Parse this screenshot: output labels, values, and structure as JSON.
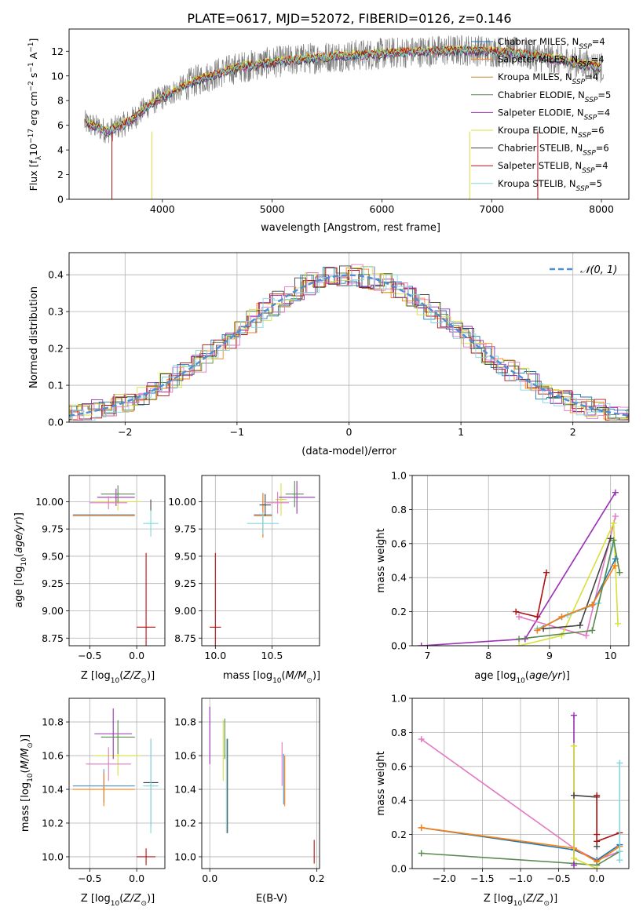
{
  "figure_title": "PLATE=0617, MJD=52072, FIBERID=0126, z=0.146",
  "chart_data": [
    {
      "id": "spectrum",
      "type": "line",
      "xlabel": "wavelength [Angstrom, rest frame]",
      "ylabel": "Flux [f",
      "ylabel_parts": [
        "Flux [f",
        "λ",
        "10",
        "−17",
        " erg cm",
        "−2",
        " s",
        "−1",
        " A",
        "−1",
        "]"
      ],
      "xlim": [
        3150,
        8250
      ],
      "ylim": [
        0,
        13.8
      ],
      "xticks": [
        4000,
        5000,
        6000,
        7000,
        8000
      ],
      "yticks": [
        0,
        2,
        4,
        6,
        8,
        10,
        12
      ],
      "grid": false,
      "legend_position": "right",
      "data_envelope": {
        "x": [
          3300,
          3500,
          3700,
          3900,
          4100,
          4300,
          4500,
          4700,
          5000,
          5300,
          5600,
          6000,
          6400,
          6800,
          7200,
          7600,
          8000
        ],
        "y": [
          6.2,
          5.5,
          6.3,
          7.8,
          8.7,
          9.6,
          10.2,
          10.7,
          11.1,
          11.4,
          11.6,
          11.8,
          12.0,
          12.1,
          11.9,
          11.3,
          10.7
        ]
      },
      "series": [
        {
          "name": "Chabrier MILES, N",
          "nssp": "4",
          "color": "#1f77b4",
          "offset": 0.0
        },
        {
          "name": "Salpeter MILES, N",
          "nssp": "4",
          "color": "#ff7f0e",
          "offset": 0.05
        },
        {
          "name": "Kroupa MILES, N",
          "nssp": "4",
          "color": "#bf8a22",
          "offset": -0.05
        },
        {
          "name": "Chabrier ELODIE, N",
          "nssp": "5",
          "color": "#5a8a50",
          "offset": 0.1
        },
        {
          "name": "Salpeter ELODIE, N",
          "nssp": "4",
          "color": "#9b30b5",
          "offset": -0.1
        },
        {
          "name": "Kroupa ELODIE, N",
          "nssp": "6",
          "color": "#d8e03a",
          "offset": 0.15
        },
        {
          "name": "Chabrier STELIB, N",
          "nssp": "6",
          "color": "#444444",
          "offset": -0.15
        },
        {
          "name": "Salpeter STELIB, N",
          "nssp": "4",
          "color": "#b01010",
          "offset": 0.08
        },
        {
          "name": "Kroupa STELIB, N",
          "nssp": "5",
          "color": "#7fd6dc",
          "offset": -0.02
        }
      ],
      "ssp_subscript": "SSP"
    },
    {
      "id": "residuals",
      "type": "line",
      "xlabel": "(data-model)/error",
      "ylabel": "Normed distribution",
      "xlim": [
        -2.5,
        2.5
      ],
      "ylim": [
        0,
        0.46
      ],
      "xticks": [
        -2,
        -1,
        0,
        1,
        2
      ],
      "yticks": [
        0.0,
        0.1,
        0.2,
        0.3,
        0.4
      ],
      "grid": true,
      "legend_position": "top-right",
      "reference_curve": {
        "name": "𝒩(0, 1)",
        "color": "#4c8fd6",
        "mean": 0.0,
        "sigma": 1.0
      },
      "histogram_bin_width": 0.1,
      "histogram_colors": [
        "#1f77b4",
        "#ff7f0e",
        "#5a8a50",
        "#b01010",
        "#9b30b5",
        "#d8e03a",
        "#444444",
        "#e377c2",
        "#7fd6dc"
      ]
    },
    {
      "id": "age_vs_Z",
      "type": "scatter",
      "xlabel": "Z [log",
      "ylabel": "age  [log",
      "xlim": [
        -0.72,
        0.3
      ],
      "ylim": [
        8.68,
        10.24
      ],
      "xticks": [
        -0.5,
        0.0
      ],
      "yticks": [
        8.75,
        9.0,
        9.25,
        9.5,
        9.75,
        10.0
      ],
      "grid": true,
      "points": [
        {
          "x": -0.35,
          "y": 9.88,
          "xerr": 0.33,
          "yerr": 0.0,
          "color": "#4c8fd6"
        },
        {
          "x": -0.35,
          "y": 9.87,
          "xerr": 0.33,
          "yerr": 0.0,
          "color": "#ff7f0e"
        },
        {
          "x": -0.2,
          "y": 10.0,
          "xerr": 0.25,
          "yerr": 0.08,
          "color": "#d8e03a"
        },
        {
          "x": -0.22,
          "y": 10.04,
          "xerr": 0.2,
          "yerr": 0.08,
          "color": "#9b30b5"
        },
        {
          "x": -0.2,
          "y": 10.07,
          "xerr": 0.18,
          "yerr": 0.08,
          "color": "#5a8a50"
        },
        {
          "x": -0.3,
          "y": 9.99,
          "xerr": 0.2,
          "yerr": 0.06,
          "color": "#e377c2"
        },
        {
          "x": 0.15,
          "y": 9.97,
          "xerr": 0.0,
          "yerr": 0.05,
          "color": "#444444"
        },
        {
          "x": 0.15,
          "y": 9.8,
          "xerr": 0.08,
          "yerr": 0.12,
          "color": "#7fd6dc"
        },
        {
          "x": 0.1,
          "y": 8.85,
          "xerr": 0.1,
          "yerr": 0.68,
          "color": "#b01010"
        }
      ]
    },
    {
      "id": "age_vs_mass",
      "type": "scatter",
      "xlabel": "mass [log",
      "ylabel": "",
      "xlim": [
        9.88,
        10.92
      ],
      "ylim": [
        8.68,
        10.24
      ],
      "xticks": [
        10.0,
        10.5
      ],
      "yticks": [
        8.75,
        9.0,
        9.25,
        9.5,
        9.75,
        10.0
      ],
      "grid": true,
      "points": [
        {
          "x": 10.42,
          "y": 9.88,
          "xerr": 0.08,
          "yerr": 0.2,
          "color": "#4c8fd6"
        },
        {
          "x": 10.42,
          "y": 9.87,
          "xerr": 0.08,
          "yerr": 0.2,
          "color": "#ff7f0e"
        },
        {
          "x": 10.58,
          "y": 10.02,
          "xerr": 0.05,
          "yerr": 0.15,
          "color": "#d8e03a"
        },
        {
          "x": 10.72,
          "y": 10.04,
          "xerr": 0.16,
          "yerr": 0.15,
          "color": "#9b30b5"
        },
        {
          "x": 10.7,
          "y": 10.07,
          "xerr": 0.08,
          "yerr": 0.12,
          "color": "#5a8a50"
        },
        {
          "x": 10.55,
          "y": 9.99,
          "xerr": 0.1,
          "yerr": 0.1,
          "color": "#e377c2"
        },
        {
          "x": 10.44,
          "y": 9.97,
          "xerr": 0.05,
          "yerr": 0.1,
          "color": "#444444"
        },
        {
          "x": 10.42,
          "y": 9.8,
          "xerr": 0.14,
          "yerr": 0.1,
          "color": "#7fd6dc"
        },
        {
          "x": 10.0,
          "y": 8.85,
          "xerr": 0.05,
          "yerr": 0.68,
          "color": "#b01010"
        }
      ]
    },
    {
      "id": "massweight_vs_age",
      "type": "line",
      "xlabel": "age  [log",
      "ylabel": "mass weight",
      "xlim": [
        6.75,
        10.3
      ],
      "ylim": [
        0,
        1.0
      ],
      "xticks": [
        7,
        8,
        9,
        10
      ],
      "yticks": [
        0.0,
        0.2,
        0.4,
        0.6,
        0.8,
        1.0
      ],
      "grid": true,
      "series": [
        {
          "color": "#9b30b5",
          "x": [
            6.9,
            8.6,
            10.08
          ],
          "y": [
            0.0,
            0.04,
            0.9
          ]
        },
        {
          "color": "#e377c2",
          "x": [
            8.5,
            9.6,
            10.08
          ],
          "y": [
            0.17,
            0.06,
            0.76
          ]
        },
        {
          "color": "#d8e03a",
          "x": [
            8.5,
            9.2,
            10.05,
            10.12
          ],
          "y": [
            0.0,
            0.06,
            0.72,
            0.13
          ]
        },
        {
          "color": "#7fd6dc",
          "x": [
            8.8,
            9.3,
            9.8,
            10.05
          ],
          "y": [
            0.1,
            0.18,
            0.25,
            0.6
          ]
        },
        {
          "color": "#444444",
          "x": [
            8.9,
            9.5,
            10.0
          ],
          "y": [
            0.1,
            0.12,
            0.63
          ]
        },
        {
          "color": "#1f77b4",
          "x": [
            8.8,
            9.2,
            9.7,
            10.08
          ],
          "y": [
            0.09,
            0.17,
            0.24,
            0.51
          ]
        },
        {
          "color": "#ff7f0e",
          "x": [
            8.8,
            9.2,
            9.7,
            10.07
          ],
          "y": [
            0.09,
            0.17,
            0.24,
            0.47
          ]
        },
        {
          "color": "#5a8a50",
          "x": [
            8.5,
            9.7,
            10.05,
            10.15
          ],
          "y": [
            0.04,
            0.09,
            0.62,
            0.43
          ]
        },
        {
          "color": "#b01010",
          "x": [
            8.45,
            8.8,
            8.95
          ],
          "y": [
            0.2,
            0.17,
            0.43
          ]
        }
      ]
    },
    {
      "id": "mass_vs_Z",
      "type": "scatter",
      "xlabel": "Z [log",
      "ylabel": "mass [log",
      "xlim": [
        -0.72,
        0.3
      ],
      "ylim": [
        9.93,
        10.94
      ],
      "xticks": [
        -0.5,
        0.0
      ],
      "yticks": [
        10.0,
        10.2,
        10.4,
        10.6,
        10.8
      ],
      "grid": true,
      "points": [
        {
          "x": -0.35,
          "y": 10.42,
          "xerr": 0.33,
          "yerr": 0.1,
          "color": "#4c8fd6"
        },
        {
          "x": -0.35,
          "y": 10.4,
          "xerr": 0.33,
          "yerr": 0.1,
          "color": "#ff7f0e"
        },
        {
          "x": -0.2,
          "y": 10.6,
          "xerr": 0.25,
          "yerr": 0.12,
          "color": "#d8e03a"
        },
        {
          "x": -0.25,
          "y": 10.73,
          "xerr": 0.2,
          "yerr": 0.15,
          "color": "#9b30b5"
        },
        {
          "x": -0.2,
          "y": 10.71,
          "xerr": 0.18,
          "yerr": 0.1,
          "color": "#5a8a50"
        },
        {
          "x": -0.3,
          "y": 10.55,
          "xerr": 0.24,
          "yerr": 0.1,
          "color": "#e377c2"
        },
        {
          "x": 0.15,
          "y": 10.44,
          "xerr": 0.08,
          "yerr": 0.26,
          "color": "#444444"
        },
        {
          "x": 0.15,
          "y": 10.42,
          "xerr": 0.08,
          "yerr": 0.28,
          "color": "#7fd6dc"
        },
        {
          "x": 0.1,
          "y": 10.0,
          "xerr": 0.1,
          "yerr": 0.05,
          "color": "#b01010"
        }
      ]
    },
    {
      "id": "mass_vs_EBV",
      "type": "scatter",
      "xlabel": "E(B-V)",
      "ylabel": "",
      "xlim": [
        -0.015,
        0.205
      ],
      "ylim": [
        9.93,
        10.94
      ],
      "xticks": [
        0.0,
        0.2
      ],
      "yticks": [
        10.0,
        10.2,
        10.4,
        10.6,
        10.8
      ],
      "grid": true,
      "points": [
        {
          "x": 0.0,
          "y": 10.72,
          "xerr": 0.0,
          "yerr": 0.17,
          "color": "#9b30b5"
        },
        {
          "x": 0.025,
          "y": 10.63,
          "xerr": 0.0,
          "yerr": 0.18,
          "color": "#d8e03a"
        },
        {
          "x": 0.028,
          "y": 10.7,
          "xerr": 0.0,
          "yerr": 0.12,
          "color": "#5a8a50"
        },
        {
          "x": 0.033,
          "y": 10.42,
          "xerr": 0.0,
          "yerr": 0.28,
          "color": "#444444"
        },
        {
          "x": 0.031,
          "y": 10.42,
          "xerr": 0.0,
          "yerr": 0.28,
          "color": "#7fd6dc"
        },
        {
          "x": 0.135,
          "y": 10.55,
          "xerr": 0.0,
          "yerr": 0.13,
          "color": "#e377c2"
        },
        {
          "x": 0.138,
          "y": 10.46,
          "xerr": 0.0,
          "yerr": 0.15,
          "color": "#4c8fd6"
        },
        {
          "x": 0.14,
          "y": 10.45,
          "xerr": 0.0,
          "yerr": 0.15,
          "color": "#ff7f0e"
        },
        {
          "x": 0.195,
          "y": 10.03,
          "xerr": 0.0,
          "yerr": 0.07,
          "color": "#b01010"
        }
      ]
    },
    {
      "id": "massweight_vs_Z",
      "type": "line",
      "xlabel": "Z [log",
      "ylabel": "mass weight",
      "xlim": [
        -2.42,
        0.42
      ],
      "ylim": [
        0,
        1.0
      ],
      "xticks": [
        -2.0,
        -1.5,
        -1.0,
        -0.5,
        0.0
      ],
      "yticks": [
        0.0,
        0.2,
        0.4,
        0.6,
        0.8,
        1.0
      ],
      "grid": true,
      "series": [
        {
          "color": "#e377c2",
          "x": [
            -2.3,
            -0.3,
            0.0,
            0.3
          ],
          "y": [
            0.76,
            0.12,
            0.05,
            0.1
          ]
        },
        {
          "color": "#1f77b4",
          "x": [
            -2.3,
            -0.3,
            0.0,
            0.3
          ],
          "y": [
            0.24,
            0.11,
            0.05,
            0.14
          ]
        },
        {
          "color": "#ff7f0e",
          "x": [
            -2.3,
            -0.3,
            0.0,
            0.3
          ],
          "y": [
            0.24,
            0.12,
            0.04,
            0.13
          ]
        },
        {
          "color": "#5a8a50",
          "x": [
            -2.3,
            -0.3,
            0.0,
            0.3
          ],
          "y": [
            0.09,
            0.03,
            0.02,
            0.1
          ]
        },
        {
          "color": "#9b30b5",
          "x": [
            -0.3,
            -0.3
          ],
          "y": [
            0.02,
            0.9
          ]
        },
        {
          "color": "#d8e03a",
          "x": [
            -0.3,
            -0.3,
            0.0
          ],
          "y": [
            0.72,
            0.06,
            0.0
          ]
        },
        {
          "color": "#444444",
          "x": [
            -0.3,
            0.0,
            0.0
          ],
          "y": [
            0.43,
            0.42,
            0.13
          ]
        },
        {
          "color": "#b01010",
          "x": [
            0.0,
            0.0,
            0.0,
            0.3
          ],
          "y": [
            0.43,
            0.2,
            0.16,
            0.21
          ]
        },
        {
          "color": "#7fd6dc",
          "x": [
            0.3,
            0.3,
            0.3
          ],
          "y": [
            0.62,
            0.1,
            0.05
          ]
        }
      ]
    }
  ]
}
